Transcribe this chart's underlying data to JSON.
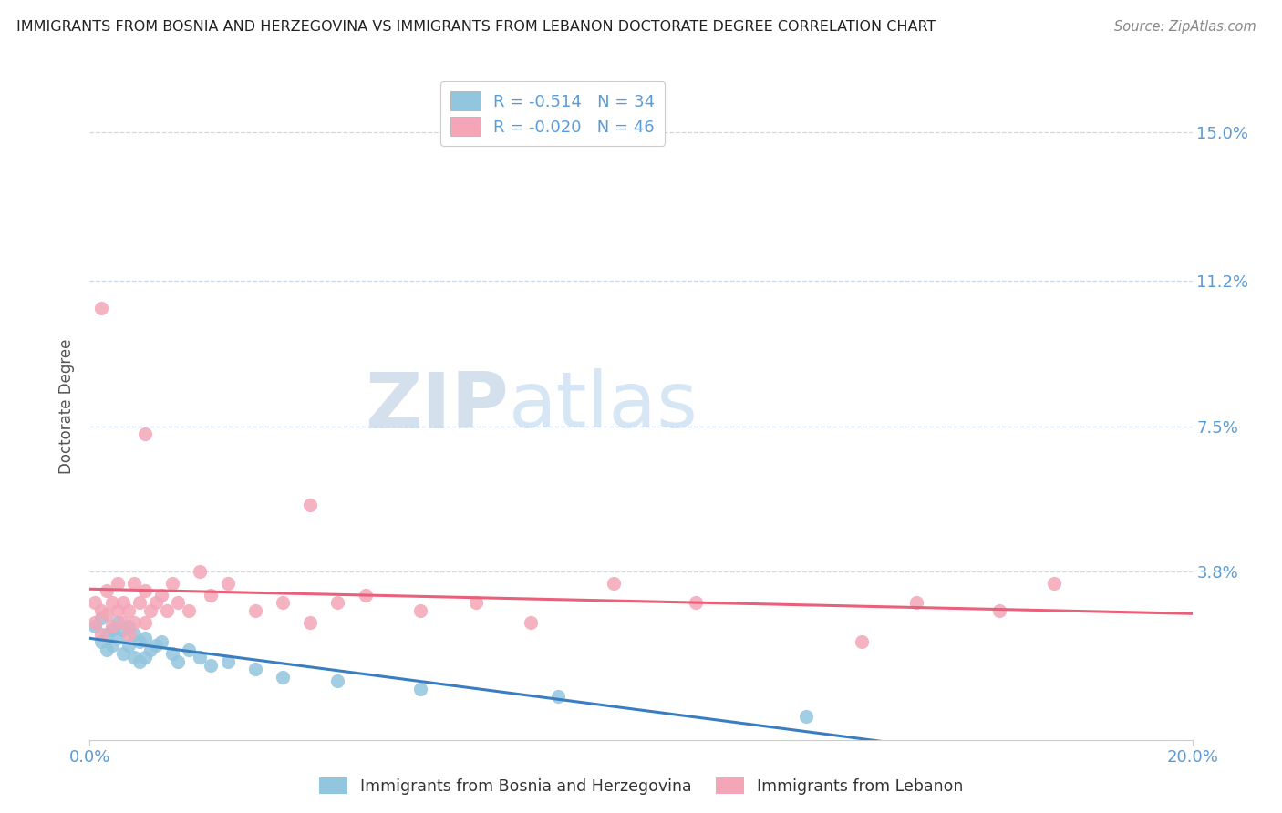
{
  "title": "IMMIGRANTS FROM BOSNIA AND HERZEGOVINA VS IMMIGRANTS FROM LEBANON DOCTORATE DEGREE CORRELATION CHART",
  "source": "Source: ZipAtlas.com",
  "ylabel": "Doctorate Degree",
  "ytick_labels": [
    "3.8%",
    "7.5%",
    "11.2%",
    "15.0%"
  ],
  "ytick_values": [
    0.038,
    0.075,
    0.112,
    0.15
  ],
  "xlim": [
    0.0,
    0.2
  ],
  "ylim": [
    -0.005,
    0.165
  ],
  "legend_r_bosnia": "R = -0.514",
  "legend_n_bosnia": "N = 34",
  "legend_r_lebanon": "R = -0.020",
  "legend_n_lebanon": "N = 46",
  "blue_color": "#92C5DE",
  "pink_color": "#F4A6B8",
  "blue_line_color": "#3A7EBF",
  "pink_line_color": "#E8607A",
  "axis_label_color": "#5B9BD5",
  "background_color": "#FFFFFF",
  "grid_color": "#C8D8E8",
  "watermark_color": "#D8EAF5",
  "bosnia_x": [
    0.001,
    0.002,
    0.002,
    0.003,
    0.003,
    0.004,
    0.004,
    0.005,
    0.005,
    0.006,
    0.006,
    0.007,
    0.007,
    0.008,
    0.008,
    0.009,
    0.009,
    0.01,
    0.01,
    0.011,
    0.012,
    0.013,
    0.015,
    0.016,
    0.018,
    0.02,
    0.022,
    0.025,
    0.03,
    0.035,
    0.045,
    0.06,
    0.085,
    0.13
  ],
  "bosnia_y": [
    0.024,
    0.026,
    0.02,
    0.022,
    0.018,
    0.023,
    0.019,
    0.025,
    0.021,
    0.023,
    0.017,
    0.024,
    0.019,
    0.022,
    0.016,
    0.02,
    0.015,
    0.021,
    0.016,
    0.018,
    0.019,
    0.02,
    0.017,
    0.015,
    0.018,
    0.016,
    0.014,
    0.015,
    0.013,
    0.011,
    0.01,
    0.008,
    0.006,
    0.001
  ],
  "lebanon_x": [
    0.001,
    0.001,
    0.002,
    0.002,
    0.003,
    0.003,
    0.004,
    0.004,
    0.005,
    0.005,
    0.006,
    0.006,
    0.007,
    0.007,
    0.008,
    0.008,
    0.009,
    0.01,
    0.01,
    0.011,
    0.012,
    0.013,
    0.014,
    0.015,
    0.016,
    0.018,
    0.02,
    0.022,
    0.025,
    0.03,
    0.035,
    0.04,
    0.045,
    0.05,
    0.06,
    0.07,
    0.08,
    0.095,
    0.11,
    0.14,
    0.15,
    0.165,
    0.175,
    0.002,
    0.04,
    0.01
  ],
  "lebanon_y": [
    0.03,
    0.025,
    0.028,
    0.022,
    0.033,
    0.027,
    0.03,
    0.024,
    0.028,
    0.035,
    0.025,
    0.03,
    0.022,
    0.028,
    0.035,
    0.025,
    0.03,
    0.033,
    0.025,
    0.028,
    0.03,
    0.032,
    0.028,
    0.035,
    0.03,
    0.028,
    0.038,
    0.032,
    0.035,
    0.028,
    0.03,
    0.025,
    0.03,
    0.032,
    0.028,
    0.03,
    0.025,
    0.035,
    0.03,
    0.02,
    0.03,
    0.028,
    0.035,
    0.105,
    0.055,
    0.073
  ]
}
